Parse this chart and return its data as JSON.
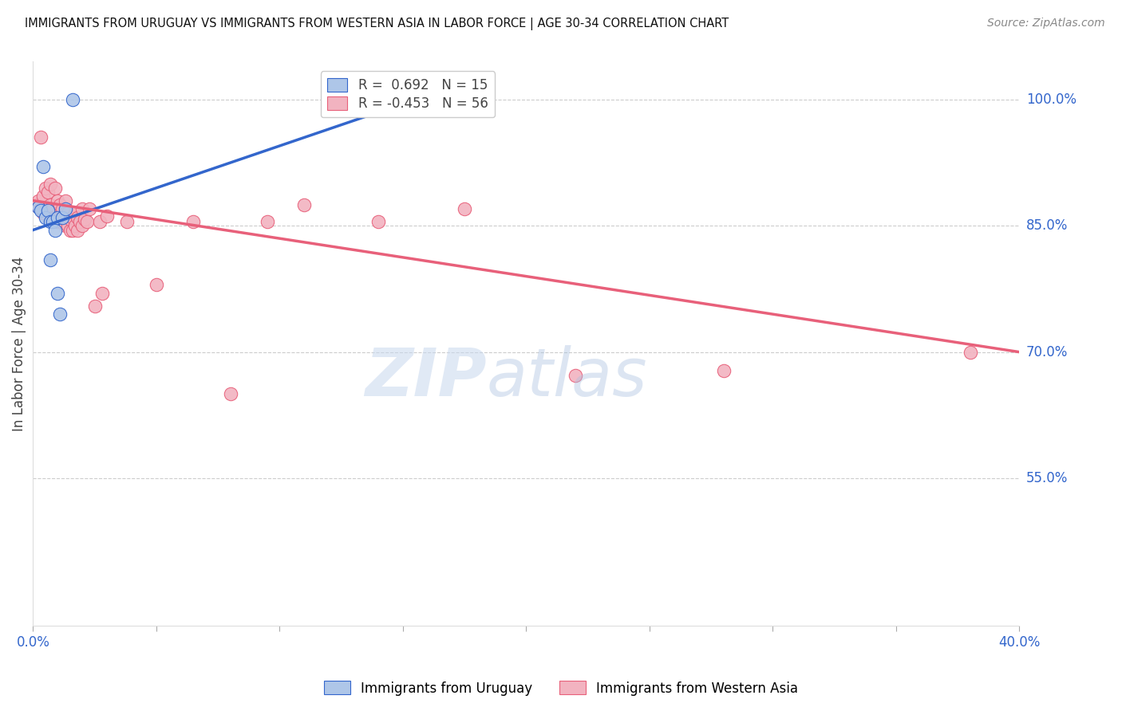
{
  "title": "IMMIGRANTS FROM URUGUAY VS IMMIGRANTS FROM WESTERN ASIA IN LABOR FORCE | AGE 30-34 CORRELATION CHART",
  "source": "Source: ZipAtlas.com",
  "ylabel": "In Labor Force | Age 30-34",
  "ylabel_right_ticks": [
    1.0,
    0.85,
    0.7,
    0.55
  ],
  "ylabel_right_labels": [
    "100.0%",
    "85.0%",
    "70.0%",
    "55.0%"
  ],
  "xmin": 0.0,
  "xmax": 0.4,
  "ymin": 0.375,
  "ymax": 1.045,
  "blue_r": 0.692,
  "blue_n": 15,
  "pink_r": -0.453,
  "pink_n": 56,
  "blue_color": "#aec6e8",
  "pink_color": "#f2b3c0",
  "blue_line_color": "#3366cc",
  "pink_line_color": "#e8607a",
  "legend_label_blue": "Immigrants from Uruguay",
  "legend_label_pink": "Immigrants from Western Asia",
  "blue_points_x": [
    0.002,
    0.003,
    0.004,
    0.005,
    0.006,
    0.007,
    0.007,
    0.008,
    0.009,
    0.01,
    0.01,
    0.011,
    0.012,
    0.013,
    0.016
  ],
  "blue_points_y": [
    0.872,
    0.868,
    0.92,
    0.86,
    0.868,
    0.855,
    0.81,
    0.855,
    0.845,
    0.86,
    0.77,
    0.745,
    0.86,
    0.87,
    1.0
  ],
  "pink_points_x": [
    0.001,
    0.002,
    0.003,
    0.003,
    0.004,
    0.004,
    0.005,
    0.005,
    0.006,
    0.006,
    0.007,
    0.007,
    0.008,
    0.008,
    0.009,
    0.009,
    0.01,
    0.01,
    0.011,
    0.011,
    0.012,
    0.012,
    0.013,
    0.013,
    0.013,
    0.014,
    0.014,
    0.015,
    0.015,
    0.016,
    0.016,
    0.017,
    0.017,
    0.018,
    0.018,
    0.019,
    0.02,
    0.02,
    0.021,
    0.022,
    0.023,
    0.025,
    0.027,
    0.028,
    0.03,
    0.038,
    0.05,
    0.065,
    0.08,
    0.095,
    0.11,
    0.14,
    0.175,
    0.22,
    0.28,
    0.38
  ],
  "pink_points_y": [
    0.875,
    0.88,
    0.87,
    0.955,
    0.865,
    0.885,
    0.87,
    0.895,
    0.87,
    0.89,
    0.875,
    0.9,
    0.87,
    0.86,
    0.86,
    0.895,
    0.855,
    0.88,
    0.86,
    0.875,
    0.855,
    0.87,
    0.85,
    0.865,
    0.88,
    0.85,
    0.865,
    0.845,
    0.858,
    0.845,
    0.86,
    0.85,
    0.865,
    0.845,
    0.86,
    0.855,
    0.85,
    0.87,
    0.858,
    0.855,
    0.87,
    0.755,
    0.855,
    0.77,
    0.862,
    0.855,
    0.78,
    0.855,
    0.65,
    0.855,
    0.875,
    0.855,
    0.87,
    0.672,
    0.678,
    0.7
  ],
  "blue_trend_x0": 0.0,
  "blue_trend_y0": 0.845,
  "blue_trend_x1": 0.16,
  "blue_trend_y1": 1.005,
  "pink_trend_x0": 0.0,
  "pink_trend_y0": 0.88,
  "pink_trend_x1": 0.4,
  "pink_trend_y1": 0.7
}
